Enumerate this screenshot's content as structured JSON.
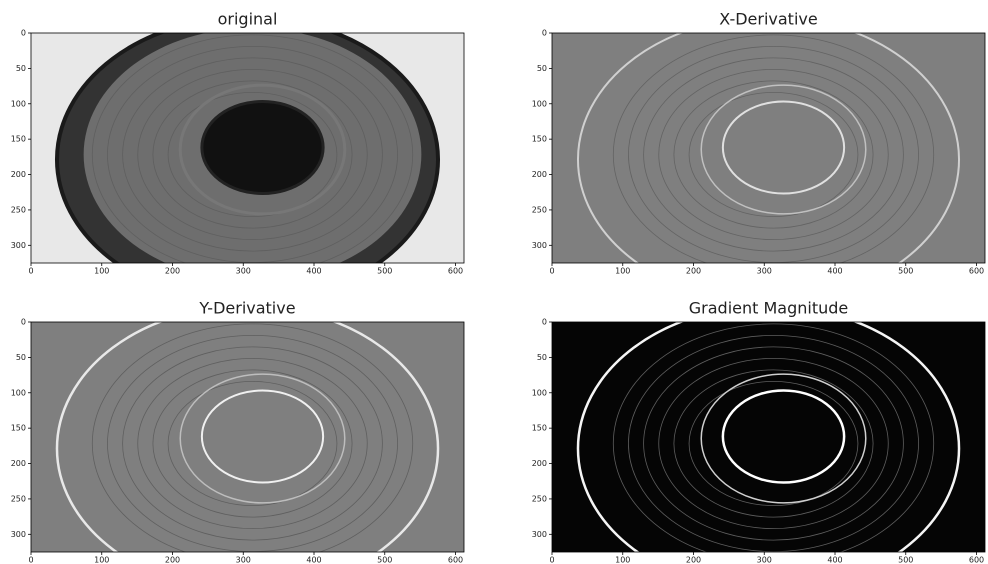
{
  "chart_data": [
    {
      "type": "image",
      "title": "original",
      "xlim": [
        0,
        612
      ],
      "ylim": [
        325,
        0
      ],
      "xticks": [
        0,
        100,
        200,
        300,
        400,
        500,
        600
      ],
      "yticks": [
        0,
        50,
        100,
        150,
        200,
        250,
        300
      ]
    },
    {
      "type": "image",
      "title": "X-Derivative",
      "xlim": [
        0,
        612
      ],
      "ylim": [
        325,
        0
      ],
      "xticks": [
        0,
        100,
        200,
        300,
        400,
        500,
        600
      ],
      "yticks": [
        0,
        50,
        100,
        150,
        200,
        250,
        300
      ]
    },
    {
      "type": "image",
      "title": "Y-Derivative",
      "xlim": [
        0,
        612
      ],
      "ylim": [
        325,
        0
      ],
      "xticks": [
        0,
        100,
        200,
        300,
        400,
        500,
        600
      ],
      "yticks": [
        0,
        50,
        100,
        150,
        200,
        250,
        300
      ]
    },
    {
      "type": "image",
      "title": "Gradient Magnitude",
      "xlim": [
        0,
        612
      ],
      "ylim": [
        325,
        0
      ],
      "xticks": [
        0,
        100,
        200,
        300,
        400,
        500,
        600
      ],
      "yticks": [
        0,
        50,
        100,
        150,
        200,
        250,
        300
      ]
    }
  ]
}
